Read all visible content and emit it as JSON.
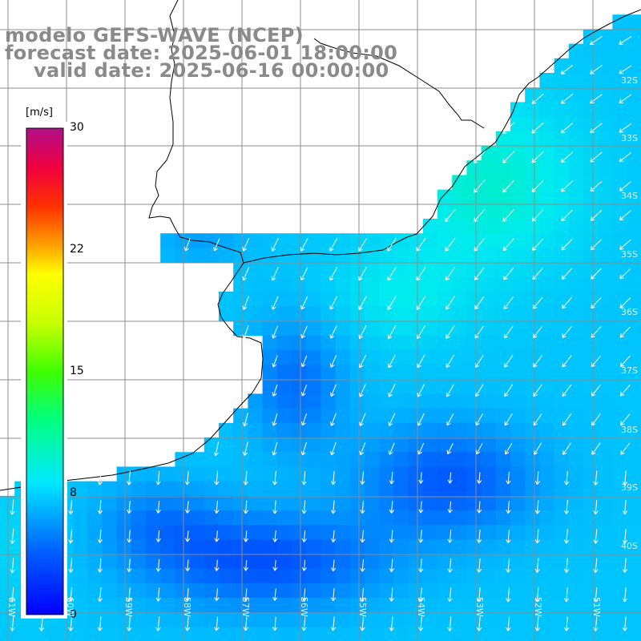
{
  "title": {
    "line1": "modelo GEFS-WAVE (NCEP)",
    "line2": "forecast date: 2025-06-01 18:00:00",
    "line3": "valid date: 2025-06-16 00:00:00"
  },
  "colorbar": {
    "unit": "[m/s]",
    "ticks": [
      {
        "value": 30,
        "label": "30"
      },
      {
        "value": 22,
        "label": "22"
      },
      {
        "value": 15,
        "label": "15"
      },
      {
        "value": 8,
        "label": "8"
      },
      {
        "value": 0,
        "label": "0"
      }
    ],
    "min": 0,
    "max": 30
  },
  "lat_labels": [
    "32S",
    "33S",
    "34S",
    "35S",
    "36S",
    "37S",
    "38S",
    "39S",
    "40S"
  ],
  "lon_labels": [
    "61W",
    "60W",
    "59W",
    "58W",
    "57W",
    "56W",
    "55W",
    "54W",
    "53W",
    "52W",
    "51W"
  ],
  "colors": {
    "land": "#ffffff",
    "grid": "#8c8c8c",
    "coast": "#000000",
    "arrow": "#ffffff",
    "title": "#8a8a8a"
  },
  "chart_data": {
    "type": "heatmap",
    "title": "modelo GEFS-WAVE (NCEP)",
    "variable": "wind speed",
    "unit": "m/s",
    "lat_range": [
      "31S",
      "41S"
    ],
    "lon_range": [
      "62W",
      "51W"
    ],
    "value_range": [
      0,
      30
    ],
    "overlay": "wind direction arrows"
  }
}
